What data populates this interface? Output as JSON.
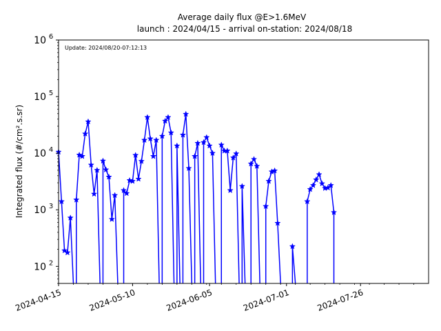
{
  "chart_data": {
    "type": "line",
    "title": "Average daily flux @E>1.6MeV",
    "subtitle": "launch : 2024/04/15 - arrival on-station: 2024/08/18",
    "annotation": "Update: 2024/08/20-07:12:13",
    "ylabel": "Integrated flux (#/cm².s.sr)",
    "yscale": "log",
    "ylim": [
      50,
      1000000
    ],
    "xlim": [
      "2024-04-15",
      "2024-08-18"
    ],
    "x_ticks": [
      "2024-04-15",
      "2024-05-10",
      "2024-06-05",
      "2024-07-01",
      "2024-07-26"
    ],
    "y_ticks": [
      {
        "base": "10",
        "exp": "2",
        "value": 100
      },
      {
        "base": "10",
        "exp": "3",
        "value": 1000
      },
      {
        "base": "10",
        "exp": "4",
        "value": 10000
      },
      {
        "base": "10",
        "exp": "5",
        "value": 100000
      },
      {
        "base": "10",
        "exp": "6",
        "value": 1000000
      }
    ],
    "grid": false,
    "line_color": "#0000ff",
    "marker": "star",
    "series": [
      {
        "values": [
          [
            "2024-04-15",
            10500
          ],
          [
            "2024-04-16",
            1400
          ],
          [
            "2024-04-17",
            190
          ],
          [
            "2024-04-18",
            175
          ],
          [
            "2024-04-19",
            720
          ],
          [
            "2024-04-20",
            null
          ],
          [
            "2024-04-21",
            1500
          ],
          [
            "2024-04-22",
            9300
          ],
          [
            "2024-04-23",
            8800
          ],
          [
            "2024-04-24",
            22000
          ],
          [
            "2024-04-25",
            36000
          ],
          [
            "2024-04-26",
            6200
          ],
          [
            "2024-04-27",
            1900
          ],
          [
            "2024-04-28",
            5000
          ],
          [
            "2024-04-29",
            null
          ],
          [
            "2024-04-30",
            7300
          ],
          [
            "2024-05-01",
            5100
          ],
          [
            "2024-05-02",
            3800
          ],
          [
            "2024-05-03",
            680
          ],
          [
            "2024-05-04",
            1800
          ],
          [
            "2024-05-05",
            null
          ],
          [
            "2024-05-06",
            null
          ],
          [
            "2024-05-07",
            2200
          ],
          [
            "2024-05-08",
            1950
          ],
          [
            "2024-05-09",
            3300
          ],
          [
            "2024-05-10",
            3200
          ],
          [
            "2024-05-11",
            9200
          ],
          [
            "2024-05-12",
            3500
          ],
          [
            "2024-05-13",
            7200
          ],
          [
            "2024-05-14",
            17000
          ],
          [
            "2024-05-15",
            43000
          ],
          [
            "2024-05-16",
            18000
          ],
          [
            "2024-05-17",
            8800
          ],
          [
            "2024-05-18",
            17000
          ],
          [
            "2024-05-19",
            null
          ],
          [
            "2024-05-20",
            20000
          ],
          [
            "2024-05-21",
            37000
          ],
          [
            "2024-05-22",
            43000
          ],
          [
            "2024-05-23",
            23000
          ],
          [
            "2024-05-24",
            null
          ],
          [
            "2024-05-25",
            13500
          ],
          [
            "2024-05-26",
            null
          ],
          [
            "2024-05-27",
            21000
          ],
          [
            "2024-05-28",
            49000
          ],
          [
            "2024-05-29",
            5400
          ],
          [
            "2024-05-30",
            null
          ],
          [
            "2024-05-31",
            8800
          ],
          [
            "2024-06-01",
            15000
          ],
          [
            "2024-06-02",
            null
          ],
          [
            "2024-06-03",
            15500
          ],
          [
            "2024-06-04",
            19000
          ],
          [
            "2024-06-05",
            13500
          ],
          [
            "2024-06-06",
            10000
          ],
          [
            "2024-06-07",
            null
          ],
          [
            "2024-06-08",
            null
          ],
          [
            "2024-06-09",
            14000
          ],
          [
            "2024-06-10",
            11000
          ],
          [
            "2024-06-11",
            11000
          ],
          [
            "2024-06-12",
            2200
          ],
          [
            "2024-06-13",
            8300
          ],
          [
            "2024-06-14",
            9800
          ],
          [
            "2024-06-15",
            null
          ],
          [
            "2024-06-16",
            2600
          ],
          [
            "2024-06-17",
            null
          ],
          [
            "2024-06-18",
            null
          ],
          [
            "2024-06-19",
            6500
          ],
          [
            "2024-06-20",
            7800
          ],
          [
            "2024-06-21",
            5900
          ],
          [
            "2024-06-22",
            null
          ],
          [
            "2024-06-23",
            null
          ],
          [
            "2024-06-24",
            1150
          ],
          [
            "2024-06-25",
            3200
          ],
          [
            "2024-06-26",
            4700
          ],
          [
            "2024-06-27",
            4900
          ],
          [
            "2024-06-28",
            580
          ],
          [
            "2024-06-29",
            null
          ],
          [
            "2024-06-30",
            null
          ],
          [
            "2024-07-01",
            null
          ],
          [
            "2024-07-02",
            null
          ],
          [
            "2024-07-03",
            225
          ],
          [
            "2024-07-04",
            null
          ],
          [
            "2024-07-05",
            null
          ],
          [
            "2024-07-06",
            null
          ],
          [
            "2024-07-07",
            null
          ],
          [
            "2024-07-08",
            1400
          ],
          [
            "2024-07-09",
            2300
          ],
          [
            "2024-07-10",
            2700
          ],
          [
            "2024-07-11",
            3400
          ],
          [
            "2024-07-12",
            4200
          ],
          [
            "2024-07-13",
            2900
          ],
          [
            "2024-07-14",
            2400
          ],
          [
            "2024-07-15",
            2450
          ],
          [
            "2024-07-16",
            2700
          ],
          [
            "2024-07-17",
            900
          ]
        ]
      }
    ]
  }
}
